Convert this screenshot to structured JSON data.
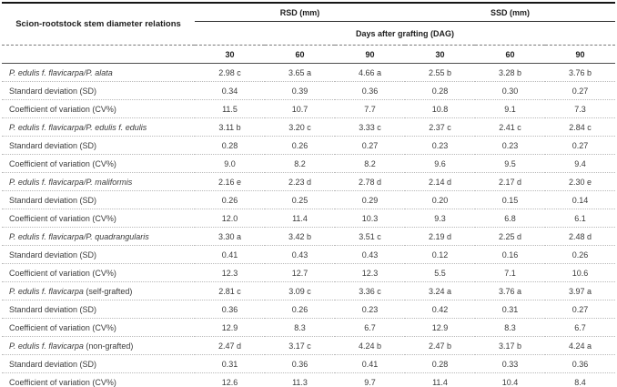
{
  "table": {
    "col1_header": "Scion-rootstock stem diameter relations",
    "group_headers": [
      "RSD (mm)",
      "SSD (mm)"
    ],
    "span_header": "Days after grafting (DAG)",
    "day_headers": [
      "30",
      "60",
      "90",
      "30",
      "60",
      "90"
    ],
    "rows": [
      {
        "label_italic": "P. edulis f. flavicarpa/P. alata",
        "label_plain": "",
        "values": [
          "2.98 c",
          "3.65 a",
          "4.66 a",
          "2.55 b",
          "3.28 b",
          "3.76 b"
        ]
      },
      {
        "label_italic": "",
        "label_plain": "Standard deviation (SD)",
        "values": [
          "0.34",
          "0.39",
          "0.36",
          "0.28",
          "0.30",
          "0.27"
        ]
      },
      {
        "label_italic": "",
        "label_plain": "Coefficient of variation (CV%)",
        "values": [
          "11.5",
          "10.7",
          "7.7",
          "10.8",
          "9.1",
          "7.3"
        ]
      },
      {
        "label_italic": "P. edulis f. flavicarpa/P. edulis f. edulis",
        "label_plain": "",
        "values": [
          "3.11 b",
          "3.20 c",
          "3.33 c",
          "2.37 c",
          "2.41 c",
          "2.84 c"
        ]
      },
      {
        "label_italic": "",
        "label_plain": "Standard deviation (SD)",
        "values": [
          "0.28",
          "0.26",
          "0.27",
          "0.23",
          "0.23",
          "0.27"
        ]
      },
      {
        "label_italic": "",
        "label_plain": "Coefficient of variation (CV%)",
        "values": [
          "9.0",
          "8.2",
          "8.2",
          "9.6",
          "9.5",
          "9.4"
        ]
      },
      {
        "label_italic": "P. edulis f. flavicarpa/P. maliformis",
        "label_plain": "",
        "values": [
          "2.16 e",
          "2.23 d",
          "2.78 d",
          "2.14 d",
          "2.17 d",
          "2.30 e"
        ]
      },
      {
        "label_italic": "",
        "label_plain": "Standard deviation (SD)",
        "values": [
          "0.26",
          "0.25",
          "0.29",
          "0.20",
          "0.15",
          "0.14"
        ]
      },
      {
        "label_italic": "",
        "label_plain": "Coefficient of variation (CV%)",
        "values": [
          "12.0",
          "11.4",
          "10.3",
          "9.3",
          "6.8",
          "6.1"
        ]
      },
      {
        "label_italic": "P. edulis f. flavicarpa/P. quadrangularis",
        "label_plain": "",
        "values": [
          "3.30 a",
          "3.42 b",
          "3.51 c",
          "2.19 d",
          "2.25 d",
          "2.48 d"
        ]
      },
      {
        "label_italic": "",
        "label_plain": "Standard deviation (SD)",
        "values": [
          "0.41",
          "0.43",
          "0.43",
          "0.12",
          "0.16",
          "0.26"
        ]
      },
      {
        "label_italic": "",
        "label_plain": "Coefficient of variation (CV%)",
        "values": [
          "12.3",
          "12.7",
          "12.3",
          "5.5",
          "7.1",
          "10.6"
        ]
      },
      {
        "label_italic": "P. edulis f. flavicarpa",
        "label_plain": " (self-grafted)",
        "values": [
          "2.81 c",
          "3.09 c",
          "3.36 c",
          "3.24 a",
          "3.76 a",
          "3.97 a"
        ]
      },
      {
        "label_italic": "",
        "label_plain": "Standard deviation (SD)",
        "values": [
          "0.36",
          "0.26",
          "0.23",
          "0.42",
          "0.31",
          "0.27"
        ]
      },
      {
        "label_italic": "",
        "label_plain": "Coefficient of variation (CV%)",
        "values": [
          "12.9",
          "8.3",
          "6.7",
          "12.9",
          "8.3",
          "6.7"
        ]
      },
      {
        "label_italic": "P. edulis f. flavicarpa",
        "label_plain": " (non-grafted)",
        "values": [
          "2.47 d",
          "3.17 c",
          "4.24 b",
          "2.47 b",
          "3.17 b",
          "4.24 a"
        ]
      },
      {
        "label_italic": "",
        "label_plain": "Standard deviation (SD)",
        "values": [
          "0.31",
          "0.36",
          "0.41",
          "0.28",
          "0.33",
          "0.36"
        ]
      },
      {
        "label_italic": "",
        "label_plain": "Coefficient of variation (CV%)",
        "values": [
          "12.6",
          "11.3",
          "9.7",
          "11.4",
          "10.4",
          "8.4"
        ]
      }
    ]
  },
  "colors": {
    "border_heavy": "#161616",
    "border_solid": "#2b2b2b",
    "border_dashed": "#7a7a7a",
    "border_dotted": "#b8b8b8",
    "text": "#3b3b3b",
    "header_text": "#1c1c1c"
  }
}
